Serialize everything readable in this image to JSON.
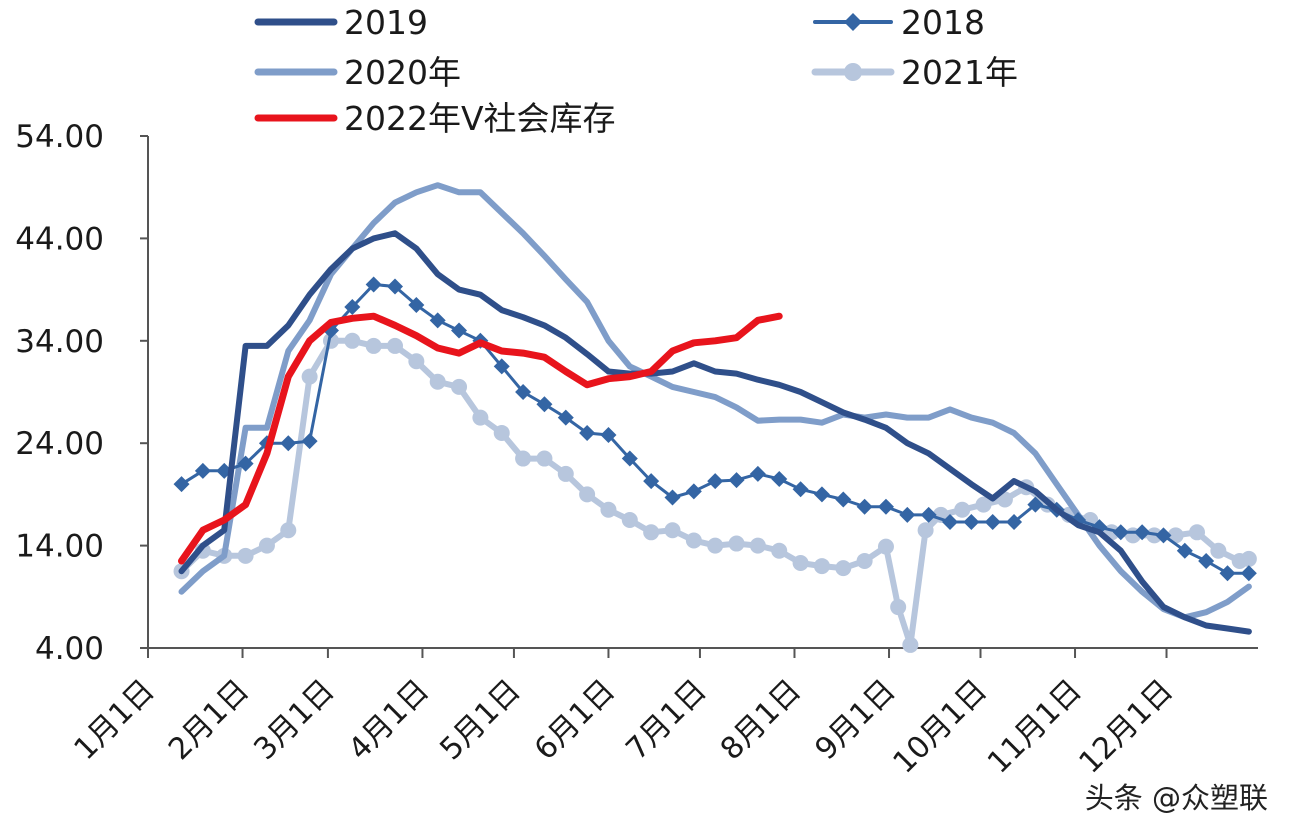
{
  "chart_data": {
    "type": "line",
    "title": "",
    "xlabel": "",
    "ylabel": "",
    "ylim": [
      4,
      54
    ],
    "yticks": [
      "54.00",
      "44.00",
      "34.00",
      "24.00",
      "14.00",
      "4.00"
    ],
    "ytick_values": [
      54,
      44,
      34,
      24,
      14,
      4
    ],
    "xticks": [
      "1月1日",
      "2月1日",
      "3月1日",
      "4月1日",
      "5月1日",
      "6月1日",
      "7月1日",
      "8月1日",
      "9月1日",
      "10月1日",
      "11月1日",
      "12月1日"
    ],
    "x_unit": "day of year",
    "xlim": [
      1,
      365
    ],
    "grid": false,
    "legend_position": "top",
    "watermark": "头条 @众塑联",
    "series": [
      {
        "name": "2019",
        "color": "#2f4f8a",
        "marker": "none",
        "x": [
          12,
          19,
          26,
          33,
          40,
          47,
          54,
          61,
          68,
          75,
          82,
          89,
          96,
          103,
          110,
          117,
          124,
          131,
          138,
          145,
          152,
          159,
          166,
          173,
          180,
          187,
          194,
          201,
          208,
          215,
          222,
          229,
          236,
          243,
          250,
          257,
          264,
          271,
          278,
          285,
          292,
          299,
          306,
          313,
          320,
          327,
          334,
          341,
          348,
          355,
          362
        ],
        "values": [
          11.5,
          14,
          15.5,
          33.5,
          33.5,
          35.5,
          38.5,
          41,
          43,
          44,
          44.5,
          43,
          40.5,
          39,
          38.5,
          37,
          36.3,
          35.5,
          34.3,
          32.7,
          31,
          30.8,
          30.8,
          31,
          31.8,
          31,
          30.8,
          30.2,
          29.7,
          29,
          28,
          27,
          26.3,
          25.5,
          24,
          23,
          21.5,
          20,
          18.6,
          20.3,
          19.3,
          17.5,
          16,
          15.3,
          13.5,
          10.5,
          8,
          7,
          6.2,
          5.9,
          5.6
        ]
      },
      {
        "name": "2018",
        "color": "#3465a4",
        "marker": "diamond",
        "x": [
          12,
          19,
          26,
          33,
          40,
          47,
          54,
          61,
          68,
          75,
          82,
          89,
          96,
          103,
          110,
          117,
          124,
          131,
          138,
          145,
          152,
          159,
          166,
          173,
          180,
          187,
          194,
          201,
          208,
          215,
          222,
          229,
          236,
          243,
          250,
          257,
          264,
          271,
          278,
          285,
          292,
          299,
          306,
          313,
          320,
          327,
          334,
          341,
          348,
          355,
          362
        ],
        "values": [
          20,
          21.3,
          21.3,
          22,
          24,
          24,
          24.2,
          35,
          37.3,
          39.5,
          39.3,
          37.5,
          36,
          35,
          34,
          31.5,
          29,
          27.8,
          26.5,
          25,
          24.8,
          22.5,
          20.3,
          18.7,
          19.3,
          20.3,
          20.4,
          21,
          20.5,
          19.5,
          19,
          18.5,
          17.8,
          17.8,
          17,
          17,
          16.3,
          16.3,
          16.3,
          16.3,
          18,
          17.5,
          16.5,
          15.8,
          15.3,
          15.3,
          15,
          13.5,
          12.5,
          11.3,
          11.3
        ]
      },
      {
        "name": "2020年",
        "color": "#7f9dc9",
        "marker": "none",
        "x": [
          12,
          19,
          26,
          33,
          40,
          47,
          54,
          61,
          68,
          75,
          82,
          89,
          96,
          103,
          110,
          117,
          124,
          131,
          138,
          145,
          152,
          159,
          166,
          173,
          180,
          187,
          194,
          201,
          208,
          215,
          222,
          229,
          236,
          243,
          250,
          257,
          264,
          271,
          278,
          285,
          292,
          299,
          306,
          313,
          320,
          327,
          334,
          341,
          348,
          355,
          362
        ],
        "values": [
          9.5,
          11.5,
          13,
          25.5,
          25.5,
          33,
          36,
          40.5,
          43,
          45.5,
          47.5,
          48.5,
          49.2,
          48.5,
          48.5,
          46.5,
          44.5,
          42.3,
          40,
          37.8,
          34,
          31.5,
          30.5,
          29.5,
          29,
          28.5,
          27.5,
          26.2,
          26.3,
          26.3,
          26,
          26.8,
          26.5,
          26.8,
          26.5,
          26.5,
          27.3,
          26.5,
          26,
          25,
          23,
          20,
          17,
          14,
          11.5,
          9.5,
          7.8,
          7,
          7.5,
          8.5,
          10
        ]
      },
      {
        "name": "2021年",
        "color": "#b7c6dd",
        "marker": "circle",
        "x": [
          12,
          19,
          26,
          33,
          40,
          47,
          54,
          61,
          68,
          75,
          82,
          89,
          96,
          103,
          110,
          117,
          124,
          131,
          138,
          145,
          152,
          159,
          166,
          173,
          180,
          187,
          194,
          201,
          208,
          215,
          222,
          229,
          236,
          243,
          247,
          251,
          256,
          261,
          268,
          275,
          282,
          289,
          296,
          303,
          310,
          317,
          324,
          331,
          338,
          345,
          352,
          359,
          362
        ],
        "values": [
          11.5,
          13.5,
          13,
          13,
          14,
          15.5,
          30.5,
          34,
          34,
          33.5,
          33.5,
          32,
          30,
          29.5,
          26.5,
          25,
          22.5,
          22.5,
          21,
          19,
          17.5,
          16.5,
          15.3,
          15.5,
          14.5,
          14,
          14.2,
          14,
          13.5,
          12.3,
          12,
          11.8,
          12.5,
          13.9,
          8,
          4.3,
          15.5,
          17,
          17.5,
          18,
          18.5,
          19.7,
          18,
          17,
          16.5,
          15.3,
          15,
          15,
          15,
          15.3,
          13.5,
          12.5,
          12.7
        ]
      },
      {
        "name": "2022年V社会库存",
        "color": "#e8141c",
        "marker": "none",
        "x": [
          12,
          19,
          26,
          33,
          40,
          47,
          54,
          61,
          68,
          75,
          82,
          89,
          96,
          103,
          110,
          117,
          124,
          131,
          138,
          145,
          152,
          159,
          166,
          173,
          180,
          187,
          194,
          201,
          208
        ],
        "values": [
          12.5,
          15.5,
          16.5,
          18,
          23,
          30.5,
          34,
          35.8,
          36.2,
          36.4,
          35.5,
          34.5,
          33.3,
          32.8,
          33.8,
          33,
          32.8,
          32.4,
          31,
          29.7,
          30.3,
          30.5,
          31,
          33,
          33.8,
          34,
          34.3,
          36,
          36.4
        ]
      }
    ]
  }
}
